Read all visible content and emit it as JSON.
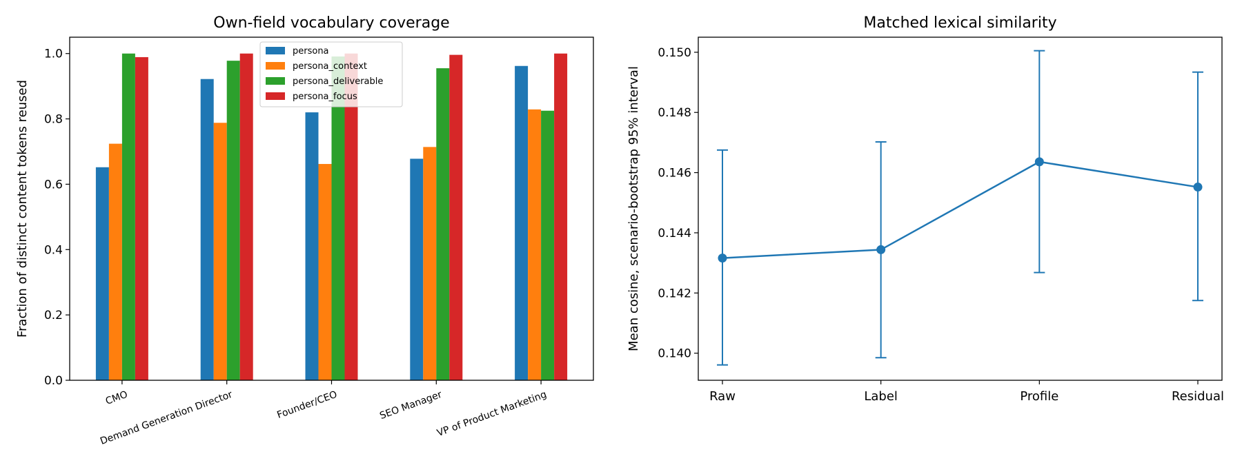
{
  "chart_data": [
    {
      "type": "bar",
      "title": "Own-field vocabulary coverage",
      "xlabel": "",
      "ylabel": "Fraction of distinct content tokens reused",
      "ylim": [
        0,
        1.05
      ],
      "yticks": [
        "0.0",
        "0.2",
        "0.4",
        "0.6",
        "0.8",
        "1.0"
      ],
      "categories": [
        "CMO",
        "Demand Generation Director",
        "Founder/CEO",
        "SEO Manager",
        "VP of Product Marketing"
      ],
      "series": [
        {
          "name": "persona",
          "color": "#1f77b4",
          "values": [
            0.652,
            0.922,
            0.82,
            0.678,
            0.962
          ]
        },
        {
          "name": "persona_context",
          "color": "#ff7f0e",
          "values": [
            0.724,
            0.788,
            0.662,
            0.714,
            0.829
          ]
        },
        {
          "name": "persona_deliverable",
          "color": "#2ca02c",
          "values": [
            1.0,
            0.978,
            0.991,
            0.955,
            0.825
          ]
        },
        {
          "name": "persona_focus",
          "color": "#d62728",
          "values": [
            0.989,
            1.0,
            1.0,
            0.996,
            1.0
          ]
        }
      ],
      "legend_position": "top-center",
      "grid": false
    },
    {
      "type": "line",
      "title": "Matched lexical similarity",
      "xlabel": "",
      "ylabel": "Mean cosine, scenario-bootstrap 95% interval",
      "ylim": [
        0.1391,
        0.1505
      ],
      "yticks": [
        "0.140",
        "0.142",
        "0.144",
        "0.146",
        "0.148",
        "0.150"
      ],
      "categories": [
        "Raw",
        "Label",
        "Profile",
        "Residual"
      ],
      "series": [
        {
          "name": "",
          "color": "#1f77b4",
          "values": [
            0.14316,
            0.14344,
            0.14636,
            0.14552
          ],
          "ci_low": [
            0.13961,
            0.13985,
            0.14268,
            0.14175
          ],
          "ci_high": [
            0.14675,
            0.14702,
            0.15005,
            0.14934
          ]
        }
      ],
      "grid": false
    }
  ]
}
